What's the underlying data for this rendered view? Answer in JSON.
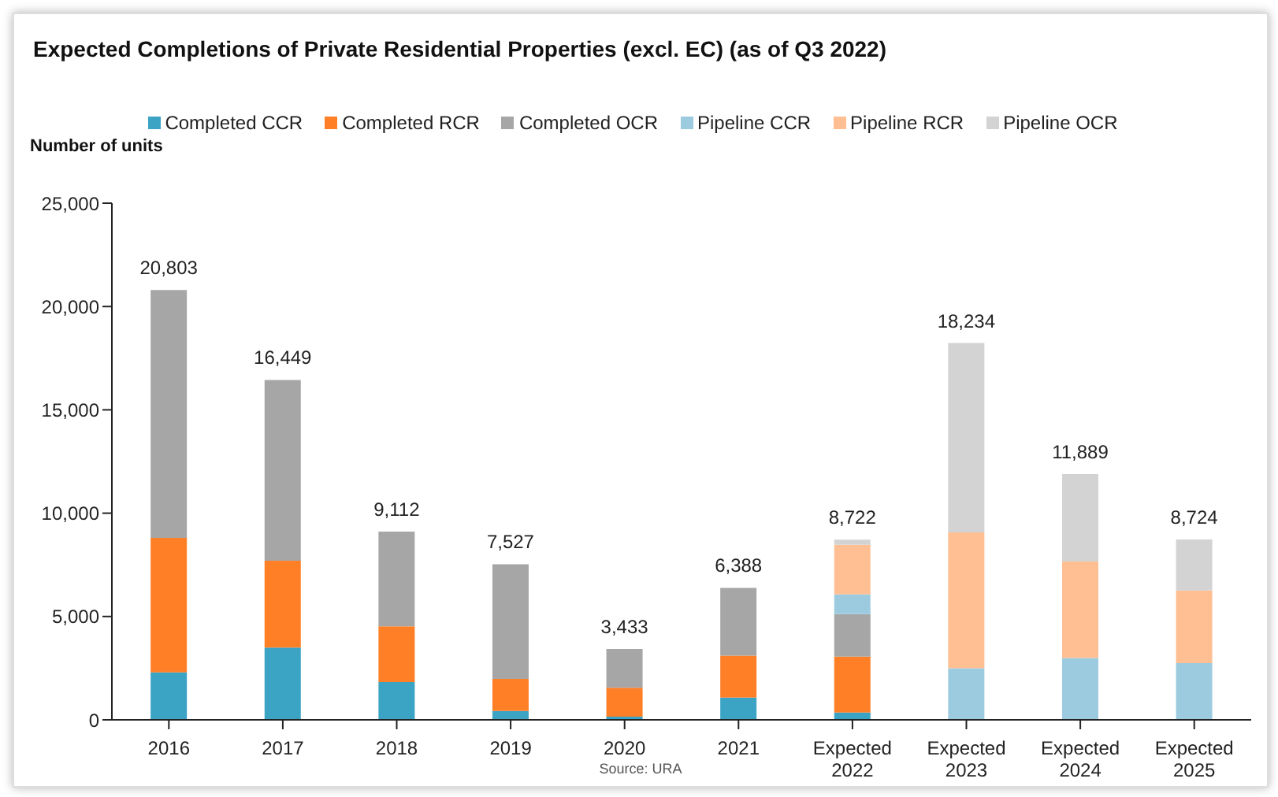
{
  "chart_data": {
    "type": "bar",
    "title": "Expected Completions of Private Residential Properties (excl. EC) (as of Q3 2022)",
    "ylabel": "Number of units",
    "categories": [
      "2016",
      "2017",
      "2018",
      "2019",
      "2020",
      "2021",
      "Expected 2022",
      "Expected 2023",
      "Expected 2024",
      "Expected 2025"
    ],
    "stacked": true,
    "legend": "top",
    "grid": false,
    "ylim": [
      0,
      25000
    ],
    "yticks": [
      {
        "value": 0,
        "label": "0"
      },
      {
        "value": 5000,
        "label": "5,000"
      },
      {
        "value": 10000,
        "label": "10,000"
      },
      {
        "value": 15000,
        "label": "15,000"
      },
      {
        "value": 20000,
        "label": "20,000"
      },
      {
        "value": 25000,
        "label": "25,000"
      }
    ],
    "series": [
      {
        "name": "Completed CCR",
        "color": "#3ba3c4",
        "values": [
          2300,
          3500,
          1830,
          430,
          150,
          1080,
          350,
          null,
          null,
          null
        ]
      },
      {
        "name": "Completed RCR",
        "color": "#ff7f27",
        "values": [
          6500,
          4200,
          2700,
          1550,
          1400,
          2030,
          2710,
          null,
          null,
          null
        ]
      },
      {
        "name": "Completed OCR",
        "color": "#a6a6a6",
        "values": [
          12003,
          8749,
          4582,
          5547,
          1883,
          3278,
          2060,
          null,
          null,
          null
        ]
      },
      {
        "name": "Pipeline CCR",
        "color": "#9ccbe0",
        "values": [
          null,
          null,
          null,
          null,
          null,
          null,
          950,
          2500,
          2990,
          2740
        ]
      },
      {
        "name": "Pipeline RCR",
        "color": "#ffbf93",
        "values": [
          null,
          null,
          null,
          null,
          null,
          null,
          2400,
          6570,
          4670,
          3520
        ]
      },
      {
        "name": "Pipeline OCR",
        "color": "#d3d3d3",
        "values": [
          null,
          null,
          null,
          null,
          null,
          null,
          252,
          9164,
          4229,
          2464
        ]
      }
    ],
    "totals": [
      "20,803",
      "16,449",
      "9,112",
      "7,527",
      "3,433",
      "6,388",
      "8,722",
      "18,234",
      "11,889",
      "8,724"
    ],
    "annotations": [
      "Source: URA"
    ]
  }
}
